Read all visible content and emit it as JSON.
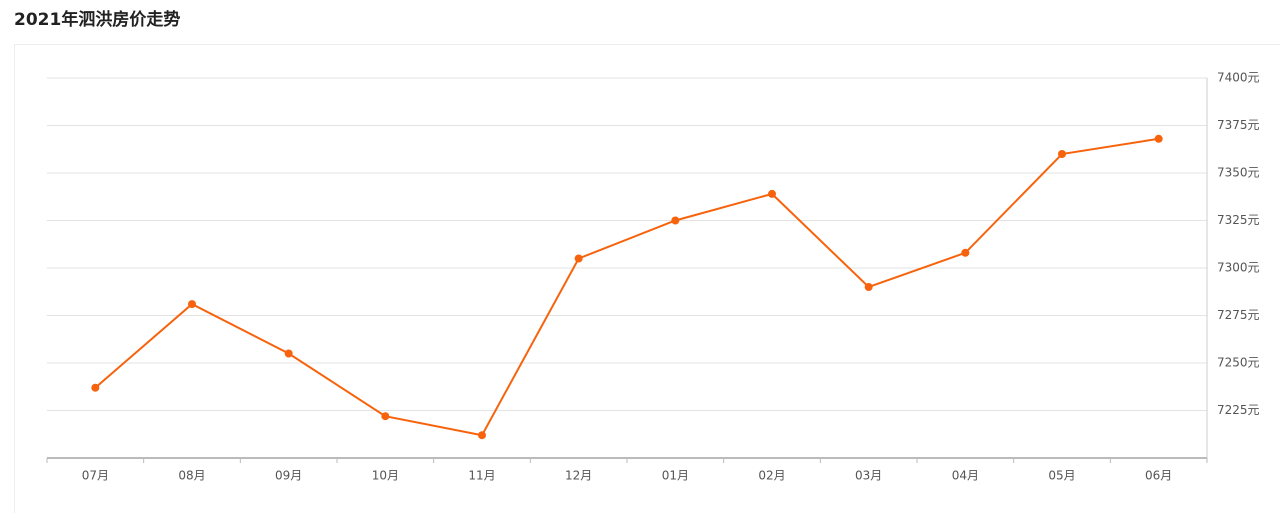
{
  "chart_data": {
    "type": "line",
    "title": "2021年泗洪房价走势",
    "categories": [
      "07月",
      "08月",
      "09月",
      "10月",
      "11月",
      "12月",
      "01月",
      "02月",
      "03月",
      "04月",
      "05月",
      "06月"
    ],
    "series": [
      {
        "color": "#f7630c",
        "values": [
          7237,
          7281,
          7255,
          7222,
          7212,
          7305,
          7325,
          7339,
          7290,
          7308,
          7360,
          7368
        ]
      }
    ],
    "ylim": [
      7200,
      7400
    ],
    "yticks": [
      {
        "value": 7225,
        "label": "7225元"
      },
      {
        "value": 7250,
        "label": "7250元"
      },
      {
        "value": 7275,
        "label": "7275元"
      },
      {
        "value": 7300,
        "label": "7300元"
      },
      {
        "value": 7325,
        "label": "7325元"
      },
      {
        "value": 7350,
        "label": "7350元"
      },
      {
        "value": 7375,
        "label": "7375元"
      },
      {
        "value": 7400,
        "label": "7400元"
      }
    ],
    "grid": true
  }
}
